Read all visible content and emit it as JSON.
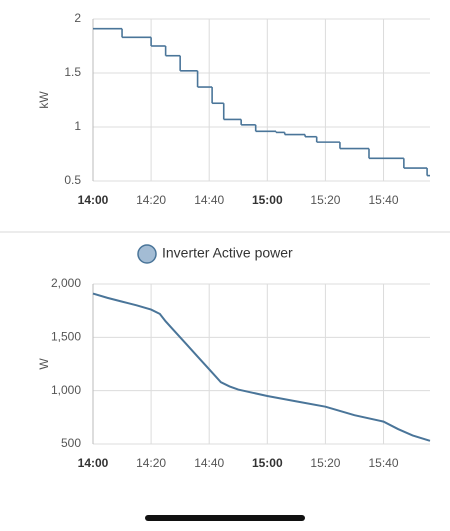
{
  "chart_data": [
    {
      "type": "step",
      "y_label": "kW",
      "x": [
        "14:00",
        "14:10",
        "14:20",
        "14:25",
        "14:30",
        "14:36",
        "14:41",
        "14:45",
        "14:51",
        "14:56",
        "15:03",
        "15:06",
        "15:13",
        "15:17",
        "15:25",
        "15:35",
        "15:47",
        "15:55"
      ],
      "values": [
        1.91,
        1.83,
        1.75,
        1.66,
        1.52,
        1.37,
        1.22,
        1.07,
        1.02,
        0.96,
        0.95,
        0.93,
        0.91,
        0.86,
        0.8,
        0.71,
        0.62,
        0.55
      ],
      "color": "#4a7599",
      "xlim": [
        "14:00",
        "15:56"
      ],
      "xticks": [
        "14:00",
        "14:20",
        "14:40",
        "15:00",
        "15:20",
        "15:40"
      ],
      "ylim": [
        0.5,
        2.0
      ],
      "yticks": [
        0.5,
        1.0,
        1.5,
        2.0
      ],
      "grid": true
    },
    {
      "type": "line",
      "y_label": "W",
      "x": [
        "14:00",
        "14:05",
        "14:10",
        "14:15",
        "14:20",
        "14:23",
        "14:25",
        "14:28",
        "14:32",
        "14:36",
        "14:40",
        "14:44",
        "14:47",
        "14:50",
        "14:55",
        "15:00",
        "15:10",
        "15:20",
        "15:25",
        "15:30",
        "15:40",
        "15:45",
        "15:50",
        "15:56"
      ],
      "series": [
        {
          "name": "Inverter Active power",
          "color": "#4a7599",
          "values": [
            1910,
            1870,
            1835,
            1800,
            1760,
            1720,
            1650,
            1560,
            1440,
            1320,
            1200,
            1080,
            1040,
            1010,
            980,
            950,
            900,
            850,
            810,
            770,
            710,
            640,
            580,
            530
          ]
        }
      ],
      "xlim": [
        "14:00",
        "15:56"
      ],
      "xticks": [
        "14:00",
        "14:20",
        "14:40",
        "15:00",
        "15:20",
        "15:40"
      ],
      "ylim": [
        500,
        2000
      ],
      "yticks": [
        {
          "value": 500,
          "label": "500"
        },
        {
          "value": 1000,
          "label": "1,000"
        },
        {
          "value": 1500,
          "label": "1,500"
        },
        {
          "value": 2000,
          "label": "2,000"
        }
      ],
      "grid": true
    }
  ]
}
